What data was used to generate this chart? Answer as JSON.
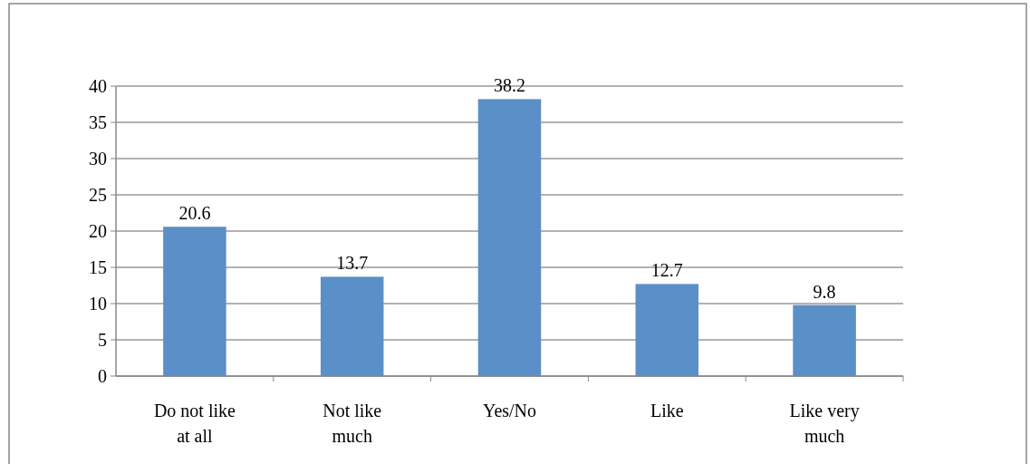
{
  "chart_data": {
    "type": "bar",
    "categories": [
      "Do not like at all",
      "Not like much",
      "Yes/No",
      "Like",
      "Like very much"
    ],
    "values": [
      20.6,
      13.7,
      38.2,
      12.7,
      9.8
    ],
    "color": "#5b8fc7",
    "ylim": [
      0,
      40
    ],
    "yticks": [
      0,
      5,
      10,
      15,
      20,
      25,
      30,
      35,
      40
    ],
    "grid": "y",
    "data_labels": true
  }
}
